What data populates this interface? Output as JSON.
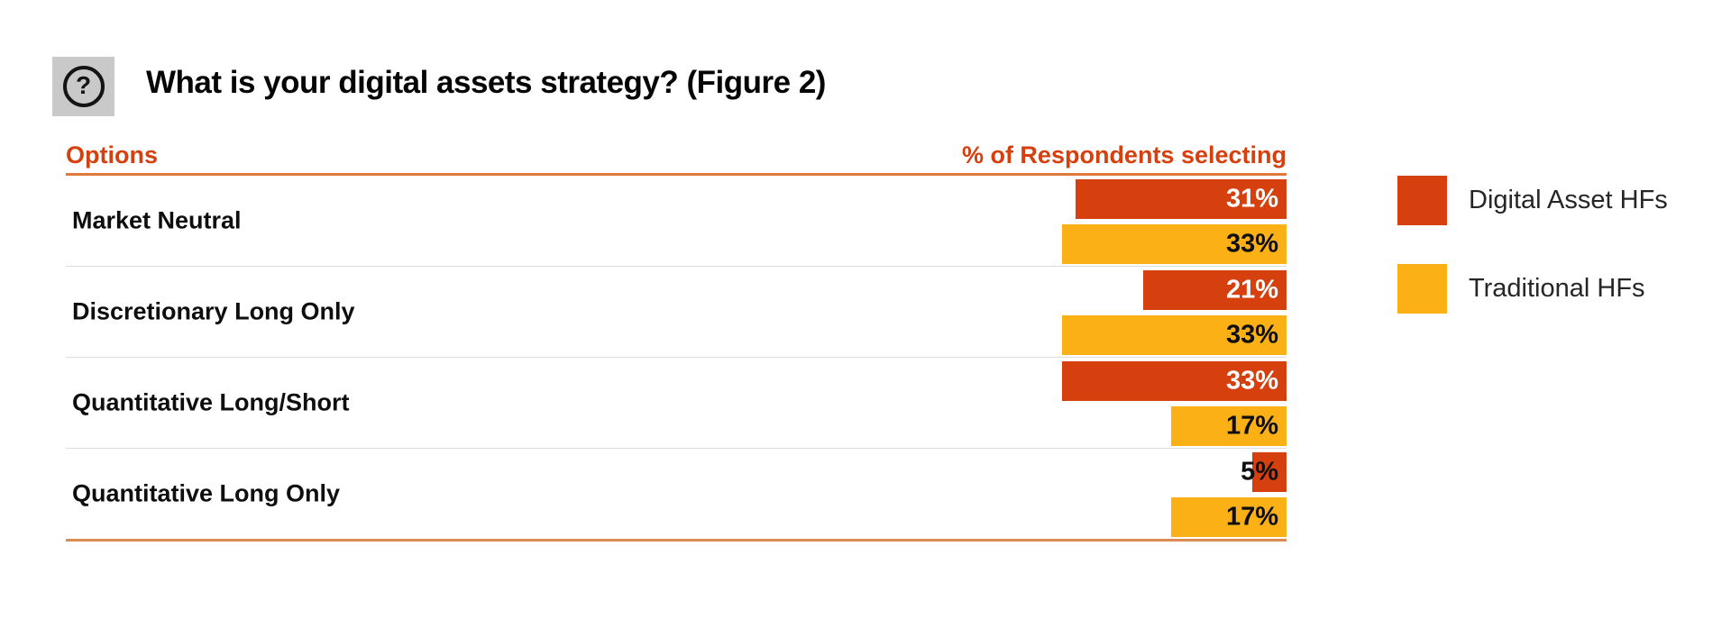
{
  "header": {
    "help_glyph": "?",
    "title": "What is your digital assets strategy? (Figure 2)"
  },
  "table": {
    "col_options": "Options",
    "col_percent": "% of Respondents selecting"
  },
  "legend": [
    {
      "label": "Digital Asset HFs",
      "color": "#d6400f"
    },
    {
      "label": "Traditional HFs",
      "color": "#fbb116"
    }
  ],
  "chart_data": {
    "type": "bar",
    "orientation": "horizontal",
    "title": "What is your digital assets strategy? (Figure 2)",
    "xlabel": "% of Respondents selecting",
    "ylabel": "Options",
    "categories": [
      "Market Neutral",
      "Discretionary Long Only",
      "Quantitative Long/Short",
      "Quantitative Long Only"
    ],
    "series": [
      {
        "name": "Digital Asset HFs",
        "color": "#d6400f",
        "values": [
          31,
          21,
          33,
          5
        ]
      },
      {
        "name": "Traditional HFs",
        "color": "#fbb116",
        "values": [
          33,
          33,
          17,
          17
        ]
      }
    ],
    "value_suffix": "%",
    "xlim": [
      0,
      33
    ],
    "grid": false,
    "legend_position": "right",
    "bars_right_aligned": true
  },
  "colors": {
    "bar_red": "#d6400f",
    "bar_yellow": "#fbb116",
    "header_text": "#d6400f",
    "header_rule": "#e0783a",
    "bottom_rule": "#dd8b55",
    "row_divider": "#dcdcdc",
    "icon_bg": "#c9c9c9"
  }
}
